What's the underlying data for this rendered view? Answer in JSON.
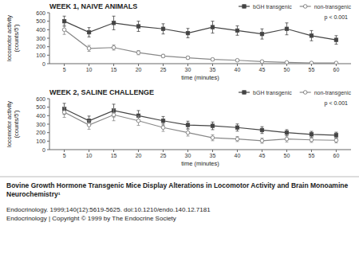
{
  "chart_data": [
    {
      "type": "line",
      "title": "WEEK 1, NAIVE ANIMALS",
      "x_label": "time (minutes)",
      "y_label": "locomotor activity\n(counts/5')",
      "x": [
        5,
        10,
        15,
        20,
        25,
        30,
        35,
        40,
        45,
        50,
        55,
        60
      ],
      "xlim": [
        2,
        63
      ],
      "xticks": [
        5,
        10,
        15,
        20,
        25,
        30,
        35,
        40,
        45,
        50,
        55,
        60
      ],
      "ylim": [
        0,
        600
      ],
      "yticks": [
        0,
        100,
        200,
        300,
        400,
        500,
        600
      ],
      "grid": false,
      "legend": "upper right",
      "series": [
        {
          "name": "bGH transgenic",
          "color": "#444444",
          "marker": "square",
          "values": [
            500,
            370,
            480,
            440,
            410,
            360,
            430,
            390,
            350,
            410,
            330,
            280
          ],
          "errors": [
            60,
            55,
            80,
            60,
            60,
            55,
            70,
            55,
            60,
            70,
            60,
            50
          ]
        },
        {
          "name": "non-transgenic",
          "color": "#888888",
          "marker": "circle",
          "values": [
            400,
            180,
            190,
            130,
            90,
            70,
            50,
            40,
            25,
            15,
            8,
            8
          ],
          "errors": [
            55,
            35,
            30,
            25,
            20,
            18,
            15,
            12,
            10,
            8,
            5,
            5
          ]
        }
      ],
      "annotations": [
        {
          "text": "p < 0.001"
        }
      ]
    },
    {
      "type": "line",
      "title": "WEEK 2, SALINE CHALLENGE",
      "x_label": "time (minutes)",
      "y_label": "locomotor activity\n(counts/5')",
      "x": [
        5,
        10,
        15,
        20,
        25,
        30,
        35,
        40,
        45,
        50,
        55,
        60
      ],
      "xlim": [
        2,
        63
      ],
      "xticks": [
        5,
        10,
        15,
        20,
        25,
        30,
        35,
        40,
        45,
        50,
        55,
        60
      ],
      "ylim": [
        0,
        600
      ],
      "yticks": [
        0,
        100,
        200,
        300,
        400,
        500,
        600
      ],
      "grid": false,
      "legend": "upper right",
      "series": [
        {
          "name": "bGH transgenic",
          "color": "#444444",
          "marker": "square",
          "values": [
            480,
            340,
            460,
            400,
            340,
            290,
            280,
            260,
            230,
            200,
            180,
            170
          ],
          "errors": [
            65,
            55,
            75,
            60,
            50,
            45,
            45,
            42,
            40,
            35,
            35,
            35
          ]
        },
        {
          "name": "non-transgenic",
          "color": "#888888",
          "marker": "circle",
          "values": [
            440,
            290,
            410,
            340,
            260,
            200,
            140,
            125,
            105,
            125,
            115,
            110
          ],
          "errors": [
            60,
            50,
            70,
            55,
            45,
            40,
            35,
            30,
            30,
            35,
            30,
            30
          ]
        }
      ],
      "annotations": [
        {
          "text": "p < 0.001"
        }
      ]
    }
  ],
  "caption": [
    "Bovine Growth Hormone Transgenic Mice Display Alterations in Locomotor Activity and Brain Monoamine",
    "Neurochemistry¹",
    "Endocrinology. 1999;140(12):5619-5625. doi:10.1210/endo.140.12.7181",
    "Endocrinology | Copyright © 1999 by The Endocrine Society"
  ]
}
